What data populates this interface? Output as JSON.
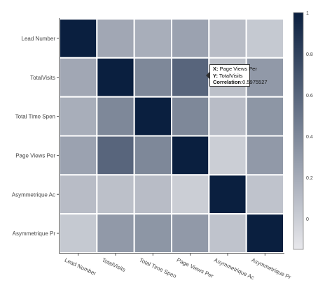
{
  "chart_data": {
    "type": "heatmap",
    "x_labels": [
      "Lead Number",
      "TotalVisits",
      "Total Time Spen",
      "Page Views Per",
      "Asymmetrique Ac",
      "Asymmetrique Pr"
    ],
    "y_labels": [
      "Lead Number",
      "TotalVisits",
      "Total Time Spen",
      "Page Views Per",
      "Asymmetrique Ac",
      "Asymmetrique Pr"
    ],
    "values": [
      [
        1.0,
        0.22,
        0.18,
        0.25,
        0.1,
        0.03
      ],
      [
        0.22,
        1.0,
        0.4,
        0.5975527,
        0.08,
        0.3
      ],
      [
        0.18,
        0.4,
        1.0,
        0.4,
        0.1,
        0.32
      ],
      [
        0.25,
        0.5975527,
        0.4,
        1.0,
        0.0,
        0.3
      ],
      [
        0.1,
        0.08,
        0.1,
        0.0,
        1.0,
        0.06
      ],
      [
        0.03,
        0.3,
        0.32,
        0.3,
        0.06,
        1.0
      ]
    ],
    "colorscale": {
      "min_color": "#e8e8ec",
      "max_color": "#0a1f3f"
    },
    "colorbar": {
      "range": [
        -0.15,
        1
      ],
      "ticks": [
        "1",
        "0.8",
        "0.6",
        "0.4",
        "0.2",
        "0"
      ]
    },
    "grid": false,
    "legend": "right"
  },
  "tooltip": {
    "x_key": "X:",
    "x_value": "Page Views Per",
    "y_key": "Y:",
    "y_value": "TotalVisits",
    "corr_key": "Correlation",
    "corr_value": "0.5975527"
  }
}
